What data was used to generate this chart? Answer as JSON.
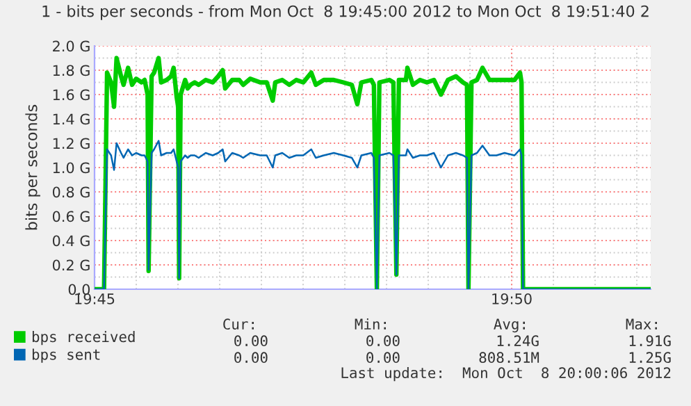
{
  "chart_data": {
    "type": "line",
    "title": "1 - bits per seconds - from Mon Oct  8 19:45:00 2012 to Mon Oct  8 19:51:40 2",
    "ylabel": "bits per seconds",
    "x": [
      19.75,
      19.7519,
      19.7525,
      19.7533,
      19.7539,
      19.7544,
      19.7553,
      19.7558,
      19.7567,
      19.7575,
      19.7583,
      19.7594,
      19.76,
      19.7606,
      19.7608,
      19.7614,
      19.7619,
      19.7628,
      19.7633,
      19.7644,
      19.7653,
      19.7658,
      19.7664,
      19.7667,
      19.7669,
      19.7672,
      19.7681,
      19.7686,
      19.7692,
      19.77,
      19.7708,
      19.7722,
      19.7736,
      19.7747,
      19.7756,
      19.7761,
      19.7775,
      19.7789,
      19.7797,
      19.7811,
      19.7831,
      19.7844,
      19.7856,
      19.7861,
      19.7875,
      19.7889,
      19.7903,
      19.7917,
      19.7933,
      19.7942,
      19.7958,
      19.7978,
      19.7997,
      19.8014,
      19.8025,
      19.8033,
      19.8053,
      19.8058,
      19.8064,
      19.8069,
      19.8089,
      19.8097,
      19.8103,
      19.8108,
      19.8122,
      19.8125,
      19.8136,
      19.815,
      19.8164,
      19.8178,
      19.8192,
      19.8206,
      19.8222,
      19.8236,
      19.8244,
      19.8247,
      19.8253,
      19.8264,
      19.8275,
      19.8289,
      19.8303,
      19.8319,
      19.8339,
      19.835,
      19.8353,
      19.8356,
      19.8611
    ],
    "series": [
      {
        "name": "bps received",
        "color": "#00cc00",
        "values": [
          0,
          0,
          1.78,
          1.7,
          1.5,
          1.9,
          1.75,
          1.68,
          1.82,
          1.68,
          1.73,
          1.7,
          1.72,
          1.6,
          0.15,
          1.75,
          1.78,
          1.9,
          1.7,
          1.72,
          1.75,
          1.82,
          1.58,
          1.5,
          0.09,
          1.6,
          1.72,
          1.65,
          1.68,
          1.7,
          1.68,
          1.72,
          1.7,
          1.75,
          1.8,
          1.65,
          1.72,
          1.72,
          1.68,
          1.73,
          1.7,
          1.7,
          1.55,
          1.7,
          1.72,
          1.68,
          1.72,
          1.7,
          1.78,
          1.68,
          1.72,
          1.72,
          1.7,
          1.68,
          1.52,
          1.7,
          1.72,
          1.68,
          0,
          1.7,
          1.72,
          1.7,
          0.12,
          1.72,
          1.72,
          1.82,
          1.68,
          1.72,
          1.7,
          1.72,
          1.6,
          1.72,
          1.75,
          1.7,
          1.68,
          0,
          1.7,
          1.72,
          1.82,
          1.72,
          1.72,
          1.72,
          1.72,
          1.78,
          1.7,
          0,
          0
        ]
      },
      {
        "name": "bps sent",
        "color": "#0066b3",
        "values": [
          0,
          0,
          1.15,
          1.1,
          0.98,
          1.2,
          1.12,
          1.08,
          1.15,
          1.1,
          1.12,
          1.1,
          1.1,
          1.05,
          0.16,
          1.12,
          1.15,
          1.22,
          1.1,
          1.12,
          1.12,
          1.15,
          1.05,
          1.0,
          0.09,
          1.05,
          1.1,
          1.08,
          1.1,
          1.1,
          1.08,
          1.12,
          1.1,
          1.12,
          1.15,
          1.05,
          1.12,
          1.1,
          1.08,
          1.12,
          1.1,
          1.1,
          1.0,
          1.1,
          1.12,
          1.08,
          1.1,
          1.1,
          1.15,
          1.08,
          1.1,
          1.12,
          1.1,
          1.08,
          1.0,
          1.1,
          1.12,
          1.08,
          0,
          1.1,
          1.12,
          1.1,
          0.12,
          1.1,
          1.1,
          1.15,
          1.08,
          1.1,
          1.1,
          1.12,
          1.0,
          1.1,
          1.12,
          1.1,
          1.08,
          0,
          1.1,
          1.12,
          1.18,
          1.1,
          1.1,
          1.12,
          1.1,
          1.15,
          1.1,
          0,
          0
        ]
      }
    ],
    "xlim": [
      19.75,
      19.8611
    ],
    "xticks": [
      {
        "value": 19.75,
        "label": "19:45"
      },
      {
        "value": 19.833333,
        "label": "19:50"
      }
    ],
    "ylim": [
      0,
      2.0
    ],
    "yticks": [
      {
        "value": 0,
        "label": "0.0"
      },
      {
        "value": 0.2,
        "label": "0.2 G"
      },
      {
        "value": 0.4,
        "label": "0.4 G"
      },
      {
        "value": 0.6,
        "label": "0.6 G"
      },
      {
        "value": 0.8,
        "label": "0.8 G"
      },
      {
        "value": 1.0,
        "label": "1.0 G"
      },
      {
        "value": 1.2,
        "label": "1.2 G"
      },
      {
        "value": 1.4,
        "label": "1.4 G"
      },
      {
        "value": 1.6,
        "label": "1.6 G"
      },
      {
        "value": 1.8,
        "label": "1.8 G"
      },
      {
        "value": 2.0,
        "label": "2.0 G"
      }
    ],
    "grid": true,
    "legend": "bottom",
    "annotations": [
      "Cur:",
      "Min:",
      "Avg:",
      "Max:",
      "0.00",
      "0.00",
      "1.24G",
      "1.91G",
      "0.00",
      "0.00",
      "808.51M",
      "1.25G",
      "Last update:  Mon Oct  8 20:00:06 2012"
    ]
  }
}
